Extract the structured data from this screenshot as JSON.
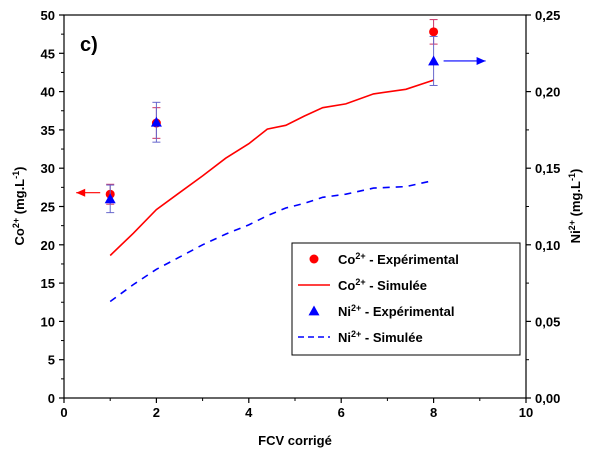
{
  "panel_label": "c)",
  "colors": {
    "co": "#ff0000",
    "ni": "#0000ff",
    "co_errorbar": "#cc3366",
    "ni_errorbar": "#6666cc",
    "axis": "#000000"
  },
  "chart_data": {
    "type": "scatter",
    "xlabel": "FCV corrigé",
    "ylabel_left": {
      "base": "Co",
      "sup": "2+",
      "rest": " (mg.L",
      "sup2": "-1",
      "end": ")"
    },
    "ylabel_right": {
      "base": "Ni",
      "sup": "2+",
      "rest": " (mg.L",
      "sup2": "-1",
      "end": ")"
    },
    "xlim": [
      0,
      10
    ],
    "ylim_left": [
      0,
      50
    ],
    "ylim_right": [
      0,
      0.25
    ],
    "x_ticks": [
      "0",
      "2",
      "4",
      "6",
      "8",
      "10"
    ],
    "y_left_ticks": [
      "0",
      "5",
      "10",
      "15",
      "20",
      "25",
      "30",
      "35",
      "40",
      "45",
      "50"
    ],
    "y_right_ticks": [
      "0,00",
      "0,05",
      "0,10",
      "0,15",
      "0,20",
      "0,25"
    ],
    "series": [
      {
        "name": "Co²⁺ - Expérimental",
        "legend": {
          "base": "Co",
          "sup": "2+",
          "rest": " - Expérimental"
        },
        "kind": "points",
        "marker": "circle",
        "axis": "left",
        "color": "red",
        "x": [
          1,
          2,
          8
        ],
        "y": [
          26.6,
          35.9,
          47.8
        ],
        "err": [
          1.3,
          2.0,
          1.6
        ]
      },
      {
        "name": "Co²⁺ - Simulée",
        "legend": {
          "base": "Co",
          "sup": "2+",
          "rest": " - Simulée"
        },
        "kind": "line",
        "style": "solid",
        "axis": "left",
        "color": "red",
        "x": [
          1.0,
          1.5,
          2.0,
          2.5,
          3.0,
          3.5,
          4.0,
          4.4,
          4.8,
          5.2,
          5.6,
          6.1,
          6.7,
          7.4,
          8.0
        ],
        "y": [
          18.6,
          21.5,
          24.6,
          26.8,
          29.0,
          31.3,
          33.2,
          35.1,
          35.6,
          36.8,
          37.9,
          38.4,
          39.7,
          40.3,
          41.5
        ]
      },
      {
        "name": "Ni²⁺ - Expérimental",
        "legend": {
          "base": "Ni",
          "sup": "2+",
          "rest": " - Expérimental"
        },
        "kind": "points",
        "marker": "triangle",
        "axis": "right",
        "color": "blue",
        "x": [
          1,
          2,
          8
        ],
        "y": [
          0.13,
          0.18,
          0.22
        ],
        "err": [
          0.009,
          0.013,
          0.016
        ]
      },
      {
        "name": "Ni²⁺ - Simulée",
        "legend": {
          "base": "Ni",
          "sup": "2+",
          "rest": " - Simulée"
        },
        "kind": "line",
        "style": "dashed",
        "axis": "right",
        "color": "blue",
        "x": [
          1.0,
          1.5,
          2.0,
          2.5,
          3.0,
          3.5,
          4.0,
          4.4,
          4.8,
          5.2,
          5.6,
          6.1,
          6.7,
          7.4,
          8.0
        ],
        "y": [
          0.063,
          0.074,
          0.084,
          0.092,
          0.1,
          0.107,
          0.113,
          0.119,
          0.124,
          0.127,
          0.131,
          0.133,
          0.137,
          0.138,
          0.142
        ]
      }
    ],
    "axis_arrows": [
      {
        "series": "Co²⁺ - Expérimental",
        "direction": "left",
        "from_x": 1,
        "y": 26.8,
        "axis": "left"
      },
      {
        "series": "Ni²⁺ - Expérimental",
        "direction": "right",
        "from_x": 8,
        "y": 0.22,
        "axis": "right"
      }
    ],
    "legend_position": "bottom-right",
    "grid": false
  }
}
